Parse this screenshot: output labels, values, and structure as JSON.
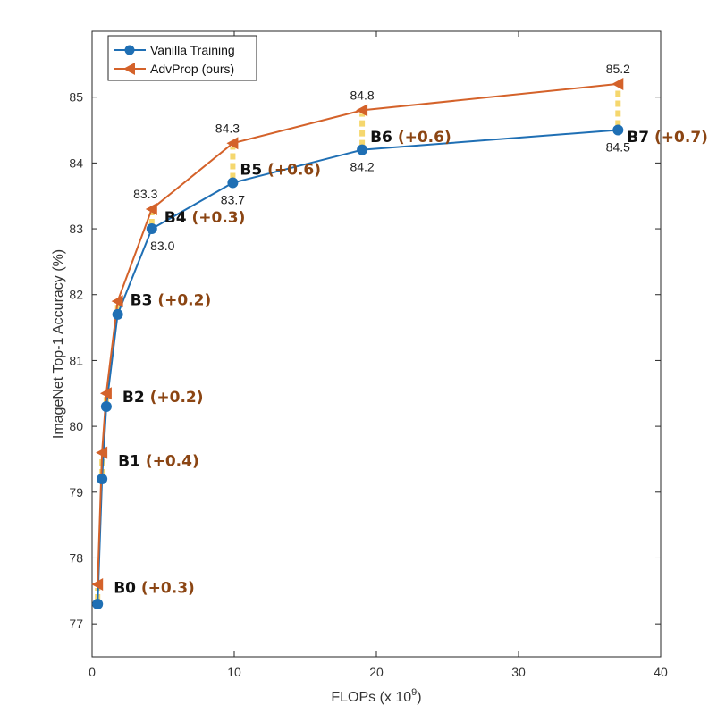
{
  "chart_data": {
    "type": "line",
    "xlabel": "FLOPs (x 10",
    "xlabel_exponent": "9",
    "xlabel_suffix": ")",
    "ylabel": "ImageNet Top-1 Accuracy (%)",
    "xlim": [
      0,
      40
    ],
    "ylim": [
      76.5,
      86
    ],
    "xticks": [
      0,
      10,
      20,
      30,
      40
    ],
    "yticks": [
      77,
      78,
      79,
      80,
      81,
      82,
      83,
      84,
      85
    ],
    "legend_position": "top-left",
    "series": [
      {
        "name": "Vanilla Training",
        "color": "#1f6fb4",
        "marker": "circle",
        "x": [
          0.39,
          0.7,
          1.0,
          1.8,
          4.2,
          9.9,
          19.0,
          37.0
        ],
        "y": [
          77.3,
          79.2,
          80.3,
          81.7,
          83.0,
          83.7,
          84.2,
          84.5
        ]
      },
      {
        "name": "AdvProp (ours)",
        "color": "#d4622a",
        "marker": "triangle-left",
        "x": [
          0.39,
          0.7,
          1.0,
          1.8,
          4.2,
          9.9,
          19.0,
          37.0
        ],
        "y": [
          77.6,
          79.6,
          80.5,
          81.9,
          83.3,
          84.3,
          84.8,
          85.2
        ]
      }
    ],
    "models": [
      {
        "name": "B0",
        "gain": "(+0.3)"
      },
      {
        "name": "B1",
        "gain": "(+0.4)"
      },
      {
        "name": "B2",
        "gain": "(+0.2)"
      },
      {
        "name": "B3",
        "gain": "(+0.2)"
      },
      {
        "name": "B4",
        "gain": "(+0.3)"
      },
      {
        "name": "B5",
        "gain": "(+0.6)"
      },
      {
        "name": "B6",
        "gain": "(+0.6)"
      },
      {
        "name": "B7",
        "gain": "(+0.7)"
      }
    ],
    "gain_color": "#8b4513",
    "gap_color": "#f5d76e",
    "value_annotations": {
      "vanilla": {
        "B4": "83.0",
        "B5": "83.7",
        "B6": "84.2",
        "B7": "84.5"
      },
      "advprop": {
        "B4": "83.3",
        "B5": "84.3",
        "B6": "84.8",
        "B7": "85.2"
      }
    }
  }
}
